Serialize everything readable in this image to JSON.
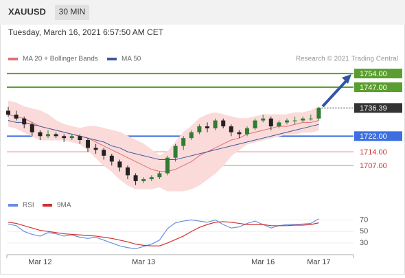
{
  "chart_data": [
    {
      "type": "candlestick",
      "symbol": "XAUUSD",
      "timeframe": "30 MIN",
      "subtitle": "Tuesday, March 16, 2021 6:57:50 AM CET",
      "source": "Research © 2021 Trading Central",
      "categories": [
        null,
        null,
        null,
        null,
        "Mar 12",
        null,
        null,
        null,
        null,
        null,
        null,
        null,
        null,
        null,
        null,
        null,
        null,
        "Mar 13",
        null,
        null,
        null,
        null,
        null,
        null,
        null,
        null,
        null,
        null,
        null,
        null,
        null,
        null,
        "Mar 16",
        null,
        null,
        null,
        null,
        null,
        null,
        "Mar 17"
      ],
      "open": [
        1735,
        1733,
        1731,
        1728,
        1724,
        1722,
        1723,
        1722,
        1721,
        1722,
        1720,
        1716,
        1715,
        1712,
        1709,
        1706,
        1702,
        1699,
        1700,
        1701,
        1703,
        1711,
        1717,
        1721,
        1724,
        1727,
        1726,
        1730,
        1727,
        1724,
        1723,
        1726,
        1730,
        1731,
        1727,
        1729,
        1730,
        1730,
        1731,
        1731
      ],
      "high": [
        1737,
        1735,
        1732,
        1729,
        1725,
        1725,
        1724,
        1723,
        1723,
        1723,
        1721,
        1718,
        1716,
        1713,
        1710,
        1707,
        1703,
        1701,
        1702,
        1704,
        1712,
        1718,
        1722,
        1725,
        1728,
        1729,
        1731,
        1731,
        1728,
        1725,
        1727,
        1731,
        1733,
        1732,
        1730,
        1731,
        1732,
        1732,
        1733,
        1737
      ],
      "low": [
        1732,
        1730,
        1726,
        1722,
        1720,
        1721,
        1721,
        1719,
        1720,
        1718,
        1714,
        1713,
        1710,
        1707,
        1704,
        1700,
        1697,
        1698,
        1699,
        1700,
        1702,
        1709,
        1715,
        1720,
        1723,
        1724,
        1725,
        1726,
        1722,
        1721,
        1722,
        1725,
        1729,
        1725,
        1726,
        1728,
        1728,
        1729,
        1730,
        1730
      ],
      "close": [
        1733,
        1731,
        1728,
        1724,
        1722,
        1723,
        1722,
        1721,
        1722,
        1720,
        1716,
        1715,
        1712,
        1709,
        1706,
        1702,
        1699,
        1700,
        1701,
        1703,
        1711,
        1717,
        1721,
        1724,
        1727,
        1726,
        1730,
        1727,
        1724,
        1723,
        1726,
        1730,
        1731,
        1727,
        1729,
        1730,
        1730,
        1731,
        1731,
        1736.39
      ],
      "up_color": "#2e7d32",
      "down_color": "#222222",
      "series": [
        {
          "name": "MA 20 + Bollinger Bands",
          "color": "#e07070",
          "band_color": "#fbdada",
          "values": [
            1733,
            1732,
            1731,
            1729,
            1727,
            1726,
            1725,
            1724,
            1723,
            1722,
            1721,
            1719,
            1717,
            1715,
            1713,
            1711,
            1709,
            1707,
            1705,
            1704,
            1704,
            1705,
            1707,
            1709,
            1712,
            1714,
            1716,
            1718,
            1720,
            1721,
            1723,
            1724,
            1725,
            1726,
            1727,
            1727,
            1728,
            1729,
            1729,
            1730
          ],
          "upper": [
            1740,
            1739,
            1737,
            1736,
            1735,
            1733,
            1730,
            1728,
            1727,
            1726,
            1727,
            1727,
            1726,
            1725,
            1724,
            1722,
            1720,
            1718,
            1715,
            1712,
            1714,
            1719,
            1724,
            1727,
            1731,
            1733,
            1734,
            1733,
            1732,
            1731,
            1731,
            1732,
            1733,
            1733,
            1733,
            1733,
            1734,
            1734,
            1735,
            1737
          ],
          "lower": [
            1727,
            1726,
            1724,
            1722,
            1720,
            1720,
            1720,
            1720,
            1719,
            1718,
            1715,
            1711,
            1707,
            1704,
            1700,
            1697,
            1695,
            1695,
            1695,
            1696,
            1694,
            1694,
            1694,
            1695,
            1697,
            1700,
            1703,
            1707,
            1712,
            1715,
            1718,
            1719,
            1720,
            1721,
            1722,
            1723,
            1723,
            1724,
            1724,
            1725
          ]
        },
        {
          "name": "MA 50",
          "color": "#3b5a9a",
          "values": [
            1730,
            1729,
            1729,
            1728,
            1727,
            1726,
            1725,
            1724,
            1723,
            1722,
            1721,
            1720,
            1719,
            1717,
            1716,
            1714,
            1713,
            1712,
            1711,
            1710,
            1710,
            1710,
            1711,
            1712,
            1713,
            1714,
            1715,
            1716,
            1717,
            1718,
            1719,
            1720,
            1721,
            1722,
            1723,
            1724,
            1725,
            1726,
            1727,
            1728
          ]
        }
      ],
      "levels": [
        {
          "value": 1754,
          "label": "1754.00",
          "color": "#5a9e2f",
          "style": "box",
          "line": "solid"
        },
        {
          "value": 1747,
          "label": "1747.00",
          "color": "#5a9e2f",
          "style": "box",
          "line": "solid"
        },
        {
          "value": 1736.39,
          "label": "1736.39",
          "color": "#333333",
          "style": "box",
          "line": "dotted"
        },
        {
          "value": 1722,
          "label": "1722.00",
          "color": "#3d6fe0",
          "style": "box",
          "line": "solid"
        },
        {
          "value": 1714,
          "label": "1714.00",
          "color": "#d03030",
          "style": "text",
          "line": "thin"
        },
        {
          "value": 1707,
          "label": "1707.00",
          "color": "#d03030",
          "style": "text",
          "line": "thin"
        }
      ],
      "ylim": [
        1693,
        1760
      ]
    },
    {
      "type": "line",
      "series": [
        {
          "name": "RSI",
          "color": "#6a8de0",
          "values": [
            63,
            60,
            50,
            45,
            42,
            48,
            46,
            42,
            44,
            40,
            38,
            40,
            35,
            30,
            25,
            22,
            20,
            24,
            28,
            35,
            55,
            65,
            68,
            70,
            68,
            66,
            70,
            62,
            56,
            58,
            64,
            68,
            62,
            56,
            60,
            62,
            62,
            63,
            64,
            72
          ]
        },
        {
          "name": "9MA",
          "color": "#d03030",
          "values": [
            66,
            64,
            60,
            56,
            52,
            50,
            48,
            46,
            45,
            44,
            43,
            42,
            40,
            38,
            35,
            32,
            28,
            26,
            25,
            25,
            30,
            36,
            42,
            50,
            57,
            62,
            66,
            67,
            66,
            64,
            62,
            62,
            62,
            60,
            60,
            60,
            61,
            61,
            62,
            65
          ]
        }
      ],
      "ylim": [
        11,
        80
      ],
      "yticks": [
        70,
        50,
        30
      ]
    }
  ]
}
